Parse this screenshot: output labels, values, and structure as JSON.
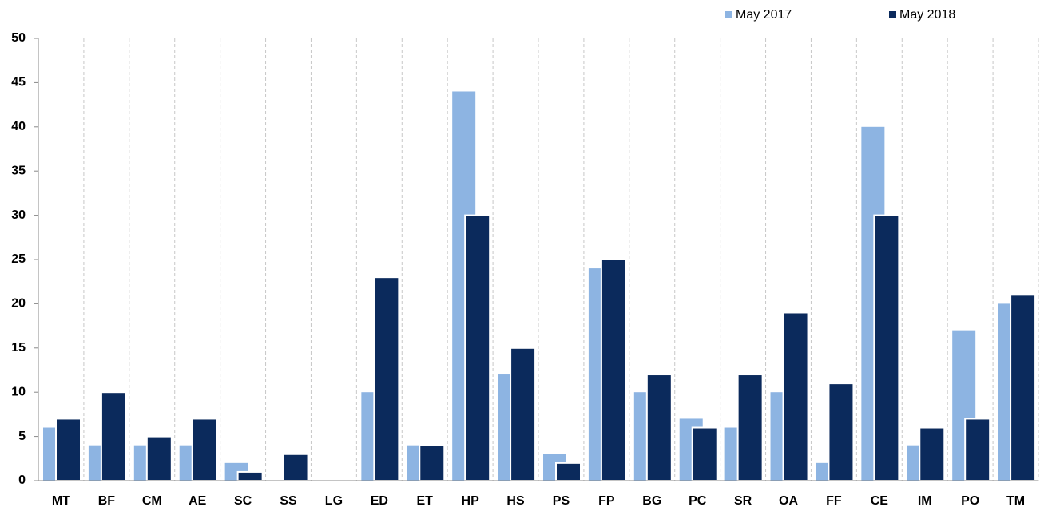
{
  "chart_data": {
    "type": "bar",
    "categories": [
      "MT",
      "BF",
      "CM",
      "AE",
      "SC",
      "SS",
      "LG",
      "ED",
      "ET",
      "HP",
      "HS",
      "PS",
      "FP",
      "BG",
      "PC",
      "SR",
      "OA",
      "FF",
      "CE",
      "IM",
      "PO",
      "TM"
    ],
    "series": [
      {
        "name": "May 2017",
        "color": "#8db4e2",
        "values": [
          6,
          4,
          4,
          4,
          2,
          0,
          0,
          10,
          4,
          44,
          12,
          3,
          24,
          10,
          7,
          6,
          10,
          2,
          40,
          4,
          17,
          20
        ]
      },
      {
        "name": "May 2018",
        "color": "#0b2a5c",
        "values": [
          7,
          10,
          5,
          7,
          1,
          3,
          0,
          23,
          4,
          30,
          15,
          2,
          25,
          12,
          6,
          12,
          19,
          11,
          30,
          6,
          7,
          21
        ]
      }
    ],
    "ylim": [
      0,
      50
    ],
    "yticks": [
      0,
      5,
      10,
      15,
      20,
      25,
      30,
      35,
      40,
      45,
      50
    ],
    "legend": "top-right"
  }
}
